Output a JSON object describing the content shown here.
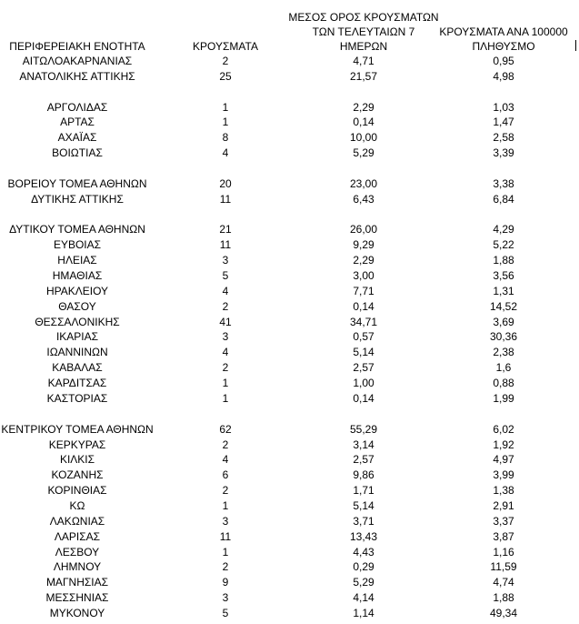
{
  "table": {
    "headers": [
      [
        "ΠΕΡΙΦΕΡΕΙΑΚΗ ΕΝΟΤΗΤΑ"
      ],
      [
        "ΚΡΟΥΣΜΑΤΑ"
      ],
      [
        "ΜΕΣΟΣ ΟΡΟΣ ΚΡΟΥΣΜΑΤΩΝ",
        "ΤΩΝ ΤΕΛΕΥΤΑΙΩΝ 7",
        "ΗΜΕΡΩΝ"
      ],
      [
        "ΚΡΟΥΣΜΑΤΑ ΑΝΑ 100000",
        "ΠΛΗΘΥΣΜΟ"
      ]
    ],
    "groups": [
      [
        [
          "ΑΙΤΩΛΟΑΚΑΡΝΑΝΙΑΣ",
          "2",
          "4,71",
          "0,95"
        ],
        [
          "ΑΝΑΤΟΛΙΚΗΣ ΑΤΤΙΚΗΣ",
          "25",
          "21,57",
          "4,98"
        ]
      ],
      [
        [
          "ΑΡΓΟΛΙΔΑΣ",
          "1",
          "2,29",
          "1,03"
        ],
        [
          "ΑΡΤΑΣ",
          "1",
          "0,14",
          "1,47"
        ],
        [
          "ΑΧΑΪΑΣ",
          "8",
          "10,00",
          "2,58"
        ],
        [
          "ΒΟΙΩΤΙΑΣ",
          "4",
          "5,29",
          "3,39"
        ]
      ],
      [
        [
          "ΒΟΡΕΙΟΥ ΤΟΜΕΑ ΑΘΗΝΩΝ",
          "20",
          "23,00",
          "3,38"
        ],
        [
          "ΔΥΤΙΚΗΣ ΑΤΤΙΚΗΣ",
          "11",
          "6,43",
          "6,84"
        ]
      ],
      [
        [
          "ΔΥΤΙΚΟΥ ΤΟΜΕΑ ΑΘΗΝΩΝ",
          "21",
          "26,00",
          "4,29"
        ],
        [
          "ΕΥΒΟΙΑΣ",
          "11",
          "9,29",
          "5,22"
        ],
        [
          "ΗΛΕΙΑΣ",
          "3",
          "2,29",
          "1,88"
        ],
        [
          "ΗΜΑΘΙΑΣ",
          "5",
          "3,00",
          "3,56"
        ],
        [
          "ΗΡΑΚΛΕΙΟΥ",
          "4",
          "7,71",
          "1,31"
        ],
        [
          "ΘΑΣΟΥ",
          "2",
          "0,14",
          "14,52"
        ],
        [
          "ΘΕΣΣΑΛΟΝΙΚΗΣ",
          "41",
          "34,71",
          "3,69"
        ],
        [
          "ΙΚΑΡΙΑΣ",
          "3",
          "0,57",
          "30,36"
        ],
        [
          "ΙΩΑΝΝΙΝΩΝ",
          "4",
          "5,14",
          "2,38"
        ],
        [
          "ΚΑΒΑΛΑΣ",
          "2",
          "2,57",
          "1,6"
        ],
        [
          "ΚΑΡΔΙΤΣΑΣ",
          "1",
          "1,00",
          "0,88"
        ],
        [
          "ΚΑΣΤΟΡΙΑΣ",
          "1",
          "0,14",
          "1,99"
        ]
      ],
      [
        [
          "ΚΕΝΤΡΙΚΟΥ ΤΟΜΕΑ ΑΘΗΝΩΝ",
          "62",
          "55,29",
          "6,02"
        ],
        [
          "ΚΕΡΚΥΡΑΣ",
          "2",
          "3,14",
          "1,92"
        ],
        [
          "ΚΙΛΚΙΣ",
          "4",
          "2,57",
          "4,97"
        ],
        [
          "ΚΟΖΑΝΗΣ",
          "6",
          "9,86",
          "3,99"
        ],
        [
          "ΚΟΡΙΝΘΙΑΣ",
          "2",
          "1,71",
          "1,38"
        ],
        [
          "ΚΩ",
          "1",
          "5,14",
          "2,91"
        ],
        [
          "ΛΑΚΩΝΙΑΣ",
          "3",
          "3,71",
          "3,37"
        ],
        [
          "ΛΑΡΙΣΑΣ",
          "11",
          "13,43",
          "3,87"
        ],
        [
          "ΛΕΣΒΟΥ",
          "1",
          "4,43",
          "1,16"
        ],
        [
          "ΛΗΜΝΟΥ",
          "2",
          "0,29",
          "11,59"
        ],
        [
          "ΜΑΓΝΗΣΙΑΣ",
          "9",
          "5,29",
          "4,74"
        ],
        [
          "ΜΕΣΣΗΝΙΑΣ",
          "3",
          "4,14",
          "1,88"
        ],
        [
          "ΜΥΚΟΝΟΥ",
          "5",
          "1,14",
          "49,34"
        ]
      ]
    ]
  }
}
